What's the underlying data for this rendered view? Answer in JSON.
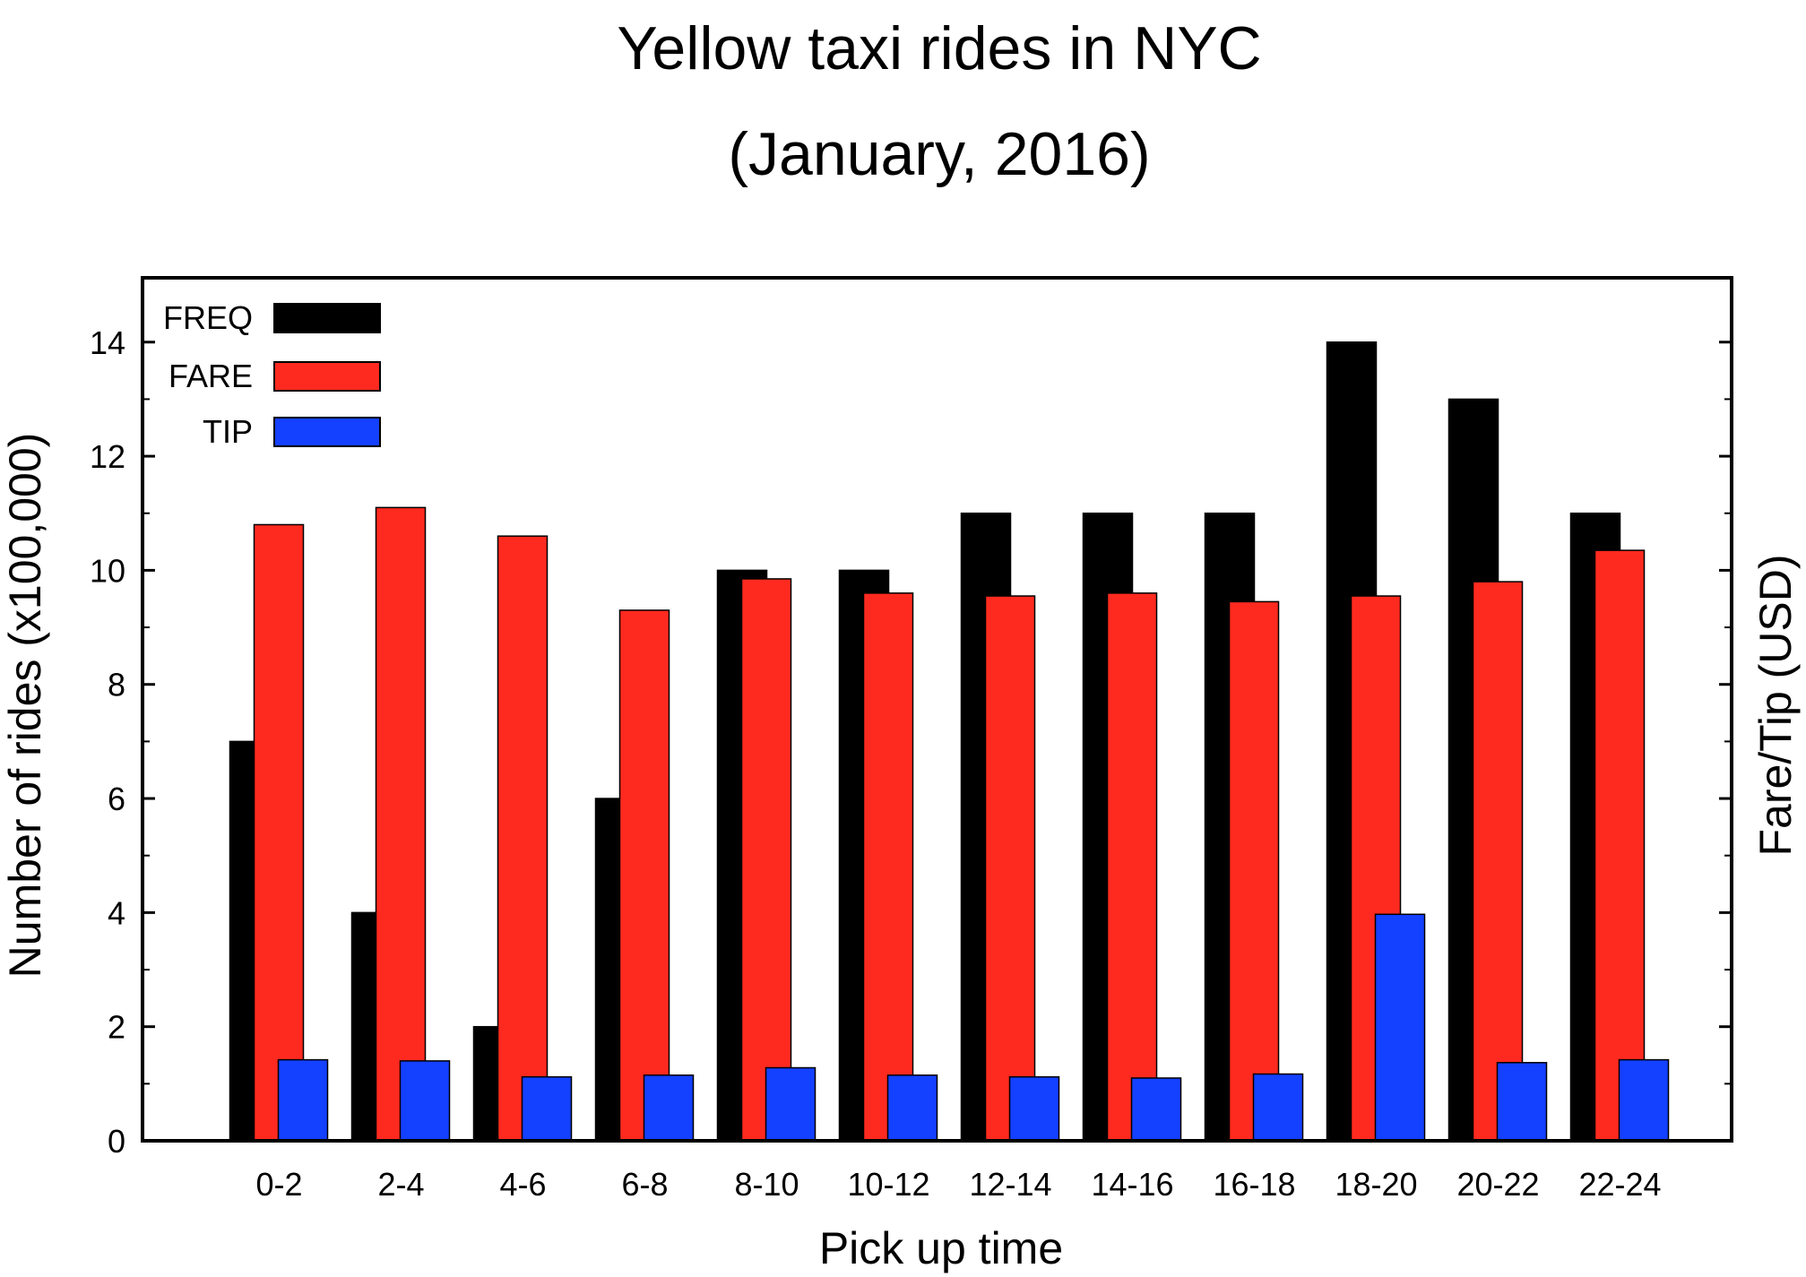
{
  "chart_data": {
    "type": "bar",
    "title": "Yellow taxi rides in NYC",
    "subtitle": "(January, 2016)",
    "xlabel": "Pick up time",
    "ylabel": "Number of rides (x100,000)",
    "ylabel_right": "Fare/Tip (USD)",
    "ylim": [
      0,
      15
    ],
    "yticks": [
      0,
      2,
      4,
      6,
      8,
      10,
      12,
      14
    ],
    "grid": false,
    "legend": "top-left",
    "categories": [
      "0-2",
      "2-4",
      "4-6",
      "6-8",
      "8-10",
      "10-12",
      "12-14",
      "14-16",
      "16-18",
      "18-20",
      "20-22",
      "22-24"
    ],
    "series": [
      {
        "name": "FREQ",
        "color": "#000000",
        "values": [
          7,
          4,
          2,
          6,
          10,
          10,
          11,
          11,
          11,
          14,
          13,
          11
        ]
      },
      {
        "name": "FARE",
        "color": "#ff2a1f",
        "values": [
          10.8,
          11.1,
          10.6,
          9.3,
          9.85,
          9.6,
          9.55,
          9.6,
          9.45,
          9.55,
          9.8,
          10.35
        ]
      },
      {
        "name": "TIP",
        "color": "#1440ff",
        "values": [
          1.42,
          1.4,
          1.12,
          1.15,
          1.28,
          1.15,
          1.12,
          1.1,
          1.17,
          3.97,
          1.37,
          1.42
        ]
      }
    ]
  }
}
